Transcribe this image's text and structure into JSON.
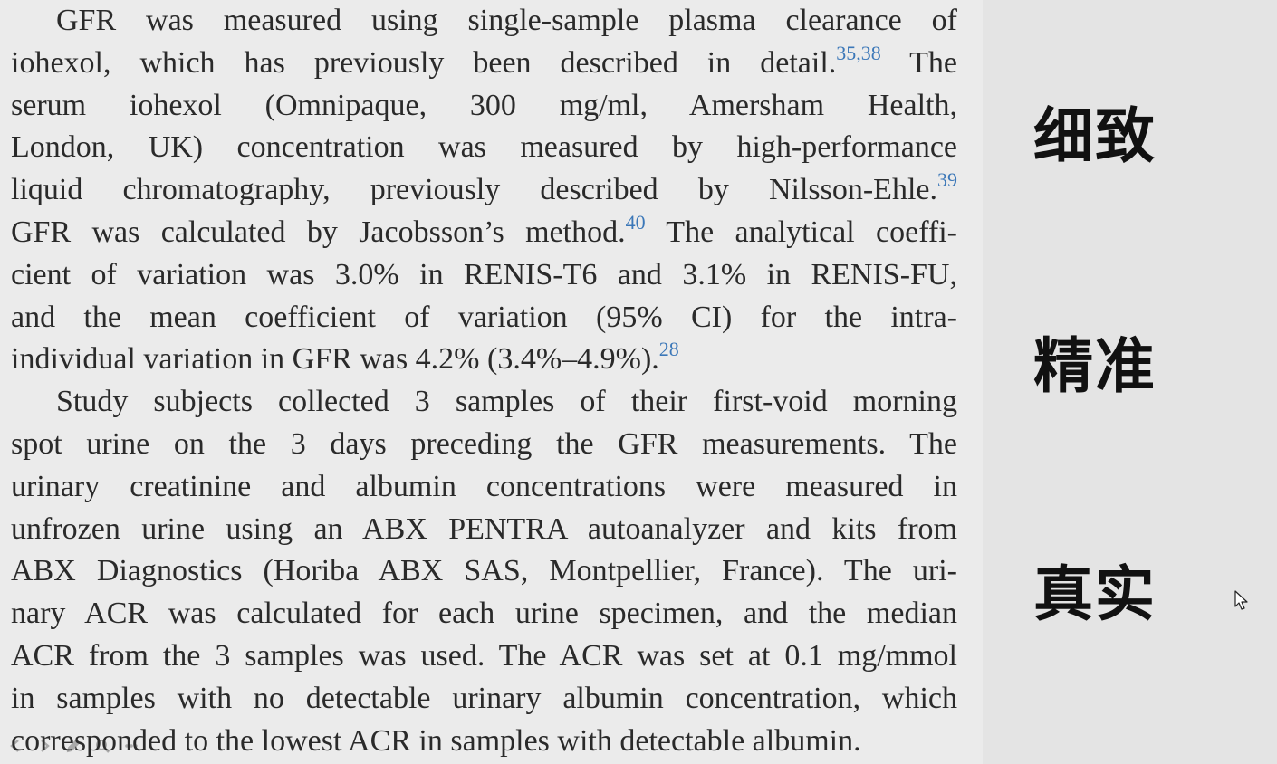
{
  "paragraphs": [
    {
      "lines": [
        [
          "GFR was measured using single-sample plasma clearance of"
        ],
        [
          "iohexol, which has previously been described in detail.",
          {
            "sup": "35,38"
          },
          " The"
        ],
        [
          "serum iohexol (Omnipaque, 300 mg/ml, Amersham Health,"
        ],
        [
          "London, UK) concentration was measured by high-performance"
        ],
        [
          "liquid chromatography, previously described by Nilsson-Ehle.",
          {
            "sup": "39"
          }
        ],
        [
          "GFR was calculated by Jacobsson’s method.",
          {
            "sup": "40"
          },
          " The analytical coeffi-"
        ],
        [
          "cient of variation was 3.0% in RENIS-T6 and 3.1% in RENIS-FU,"
        ],
        [
          "and the mean coefficient of variation (95% CI) for the intra-"
        ],
        [
          "individual variation in GFR was 4.2% (3.4%–4.9%).",
          {
            "sup": "28"
          }
        ]
      ]
    },
    {
      "lines": [
        [
          "Study subjects collected 3 samples of their first-void morning"
        ],
        [
          "spot urine on the 3 days preceding the GFR measurements. The"
        ],
        [
          "urinary creatinine and albumin concentrations were measured in"
        ],
        [
          "unfrozen urine using an ABX PENTRA autoanalyzer and kits from"
        ],
        [
          "ABX Diagnostics (Horiba ABX SAS, Montpellier, France). The uri-"
        ],
        [
          "nary ACR was calculated for each urine specimen, and the median"
        ],
        [
          "ACR from the 3 samples was used. The ACR was set at 0.1 mg/mmol"
        ],
        [
          "in samples with no detectable urinary albumin concentration, which"
        ],
        [
          "corresponded to the lowest ACR in samples with detectable albumin."
        ]
      ]
    }
  ],
  "sidebar": {
    "labels": [
      "细致",
      "精准",
      "真实"
    ]
  },
  "icons": {
    "cursor": "mouse-pointer-icon",
    "toolbar": [
      "prev-icon",
      "next-icon",
      "pencil-icon",
      "zoom-icon",
      "menu-icon"
    ]
  }
}
